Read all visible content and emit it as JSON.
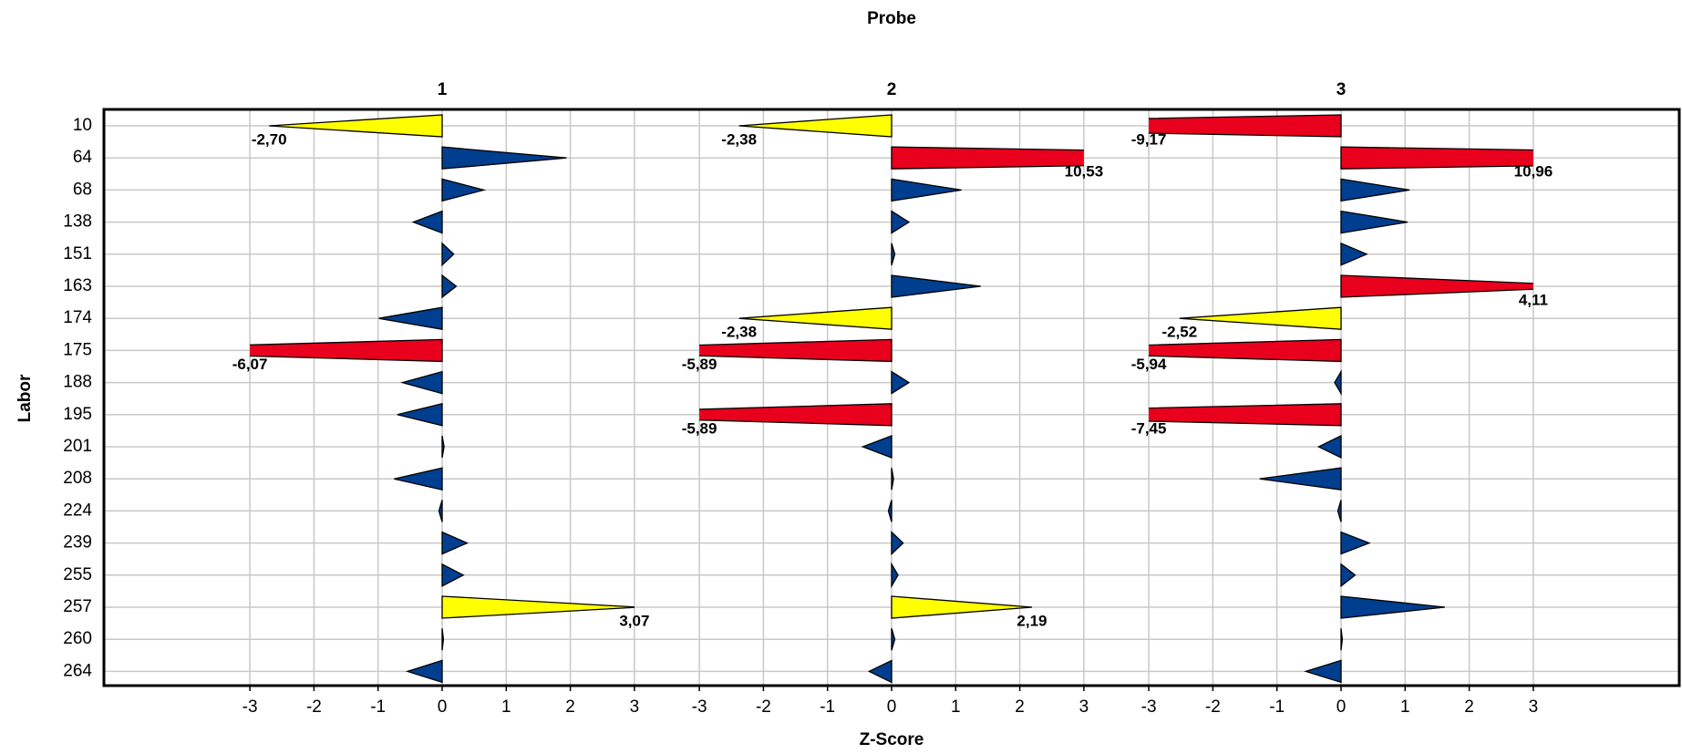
{
  "chart_data": {
    "type": "triangle-bar",
    "title": "Probe",
    "xlabel": "Z-Score",
    "ylabel": "Labor",
    "categories": [
      "10",
      "64",
      "68",
      "138",
      "151",
      "163",
      "174",
      "175",
      "188",
      "195",
      "201",
      "208",
      "224",
      "239",
      "255",
      "257",
      "260",
      "264"
    ],
    "xlim": [
      -3,
      3
    ],
    "xticks": [
      -3,
      -2,
      -1,
      0,
      1,
      2,
      3
    ],
    "grid": true,
    "panels": [
      {
        "title": "1",
        "values": [
          -2.7,
          1.94,
          0.65,
          -0.45,
          0.18,
          0.22,
          -0.99,
          -6.07,
          -0.62,
          -0.7,
          0.03,
          -0.75,
          -0.05,
          0.39,
          0.33,
          3.07,
          0.02,
          -0.54
        ],
        "value_labels": [
          "-2,70",
          null,
          null,
          null,
          null,
          null,
          null,
          "-6,07",
          null,
          null,
          null,
          null,
          null,
          null,
          null,
          "3,07",
          null,
          null
        ],
        "colors": [
          "#ffff00",
          "#003f8f",
          "#003f8f",
          "#003f8f",
          "#003f8f",
          "#003f8f",
          "#003f8f",
          "#e8001c",
          "#003f8f",
          "#003f8f",
          "#003f8f",
          "#003f8f",
          "#003f8f",
          "#003f8f",
          "#003f8f",
          "#ffff00",
          "#003f8f",
          "#003f8f"
        ]
      },
      {
        "title": "2",
        "values": [
          -2.38,
          10.53,
          1.09,
          0.27,
          0.05,
          1.39,
          -2.38,
          -5.89,
          0.27,
          -5.89,
          -0.45,
          0.03,
          -0.05,
          0.18,
          0.1,
          2.19,
          0.05,
          -0.35
        ],
        "value_labels": [
          "-2,38",
          "10,53",
          null,
          null,
          null,
          null,
          "-2,38",
          "-5,89",
          null,
          "-5,89",
          null,
          null,
          null,
          null,
          null,
          "2,19",
          null,
          null
        ],
        "colors": [
          "#ffff00",
          "#e8001c",
          "#003f8f",
          "#003f8f",
          "#003f8f",
          "#003f8f",
          "#ffff00",
          "#e8001c",
          "#003f8f",
          "#e8001c",
          "#003f8f",
          "#003f8f",
          "#003f8f",
          "#003f8f",
          "#003f8f",
          "#ffff00",
          "#003f8f",
          "#003f8f"
        ]
      },
      {
        "title": "3",
        "values": [
          -9.17,
          10.96,
          1.07,
          1.04,
          0.4,
          4.11,
          -2.52,
          -5.94,
          -0.1,
          -7.45,
          -0.35,
          -1.27,
          -0.05,
          0.44,
          0.22,
          1.62,
          0.02,
          -0.55
        ],
        "value_labels": [
          "-9,17",
          "10,96",
          null,
          null,
          null,
          "4,11",
          "-2,52",
          "-5,94",
          null,
          "-7,45",
          null,
          null,
          null,
          null,
          null,
          null,
          null,
          null
        ],
        "colors": [
          "#e8001c",
          "#e8001c",
          "#003f8f",
          "#003f8f",
          "#003f8f",
          "#e8001c",
          "#ffff00",
          "#e8001c",
          "#003f8f",
          "#e8001c",
          "#003f8f",
          "#003f8f",
          "#003f8f",
          "#003f8f",
          "#003f8f",
          "#003f8f",
          "#003f8f",
          "#003f8f"
        ]
      }
    ]
  }
}
